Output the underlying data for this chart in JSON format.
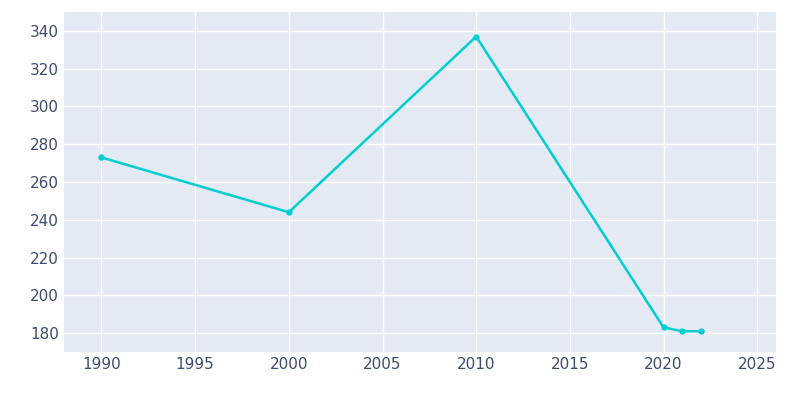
{
  "years": [
    1990,
    2000,
    2010,
    2020,
    2021,
    2022
  ],
  "population": [
    273,
    244,
    337,
    183,
    181,
    181
  ],
  "line_color": "#00CED1",
  "marker_color": "#00CED1",
  "bg_color": "#ffffff",
  "plot_bg_color": "#E4EAF4",
  "grid_color": "#ffffff",
  "xlabel": "",
  "ylabel": "",
  "xlim": [
    1988,
    2026
  ],
  "ylim": [
    170,
    350
  ],
  "xticks": [
    1990,
    1995,
    2000,
    2005,
    2010,
    2015,
    2020,
    2025
  ],
  "yticks": [
    180,
    200,
    220,
    240,
    260,
    280,
    300,
    320,
    340
  ],
  "linewidth": 1.8,
  "marker_size": 3.5,
  "tick_color": "#3d4b6e",
  "tick_fontsize": 11
}
